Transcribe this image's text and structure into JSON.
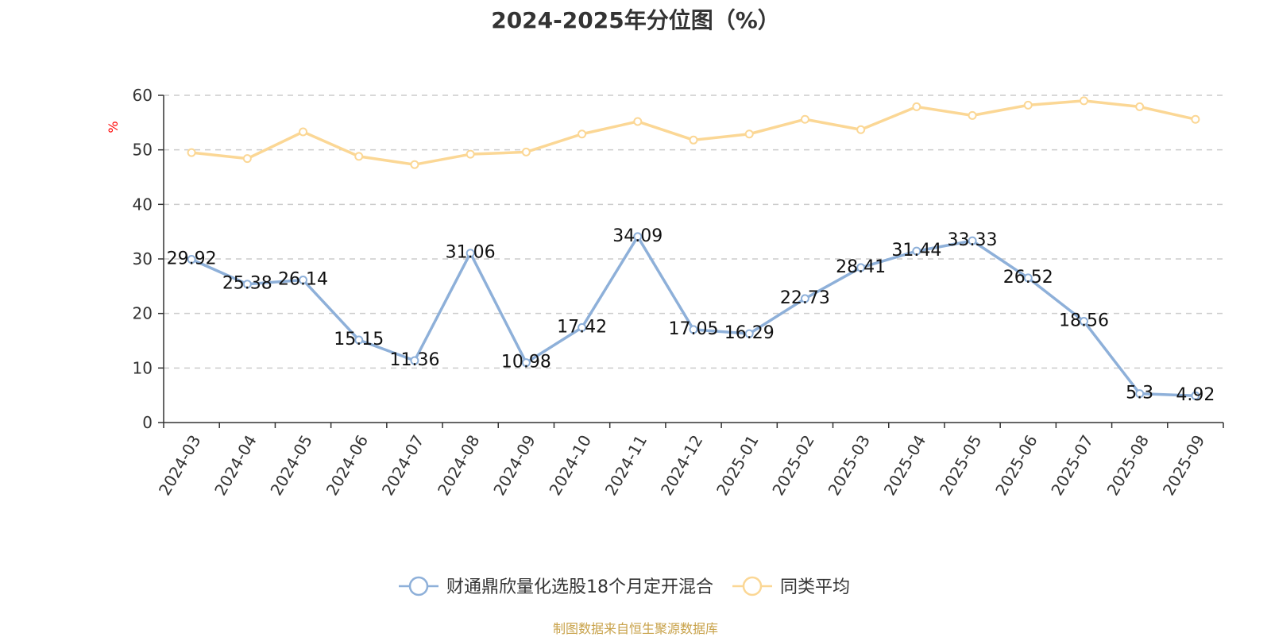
{
  "chart_data": {
    "type": "line",
    "title": "2024-2025年分位图（%）",
    "xlabel": "",
    "ylabel": "%",
    "ylim": [
      0,
      60
    ],
    "yticks": [
      0,
      10,
      20,
      30,
      40,
      50,
      60
    ],
    "grid": true,
    "legend_position": "bottom-center",
    "categories": [
      "2024-03",
      "2024-04",
      "2024-05",
      "2024-06",
      "2024-07",
      "2024-08",
      "2024-09",
      "2024-10",
      "2024-11",
      "2024-12",
      "2025-01",
      "2025-02",
      "2025-03",
      "2025-04",
      "2025-05",
      "2025-06",
      "2025-07",
      "2025-08",
      "2025-09"
    ],
    "series": [
      {
        "name": "财通鼎欣量化选股18个月定开混合",
        "color": "#8eb0d9",
        "show_labels": true,
        "values": [
          29.92,
          25.38,
          26.14,
          15.15,
          11.36,
          31.06,
          10.98,
          17.42,
          34.09,
          17.05,
          16.29,
          22.73,
          28.41,
          31.44,
          33.33,
          26.52,
          18.56,
          5.3,
          4.92
        ]
      },
      {
        "name": "同类平均",
        "color": "#fbd795",
        "show_labels": false,
        "values": [
          49.5,
          48.4,
          53.3,
          48.8,
          47.3,
          49.2,
          49.6,
          52.9,
          55.2,
          51.8,
          52.9,
          55.6,
          53.7,
          57.9,
          56.3,
          58.2,
          59.0,
          57.9,
          55.6
        ]
      }
    ]
  },
  "source_note": "制图数据来自恒生聚源数据库",
  "colors": {
    "axis": "#333333",
    "grid": "#cccccc",
    "ylabel": "#ff0000",
    "source": "#c8a24a"
  }
}
